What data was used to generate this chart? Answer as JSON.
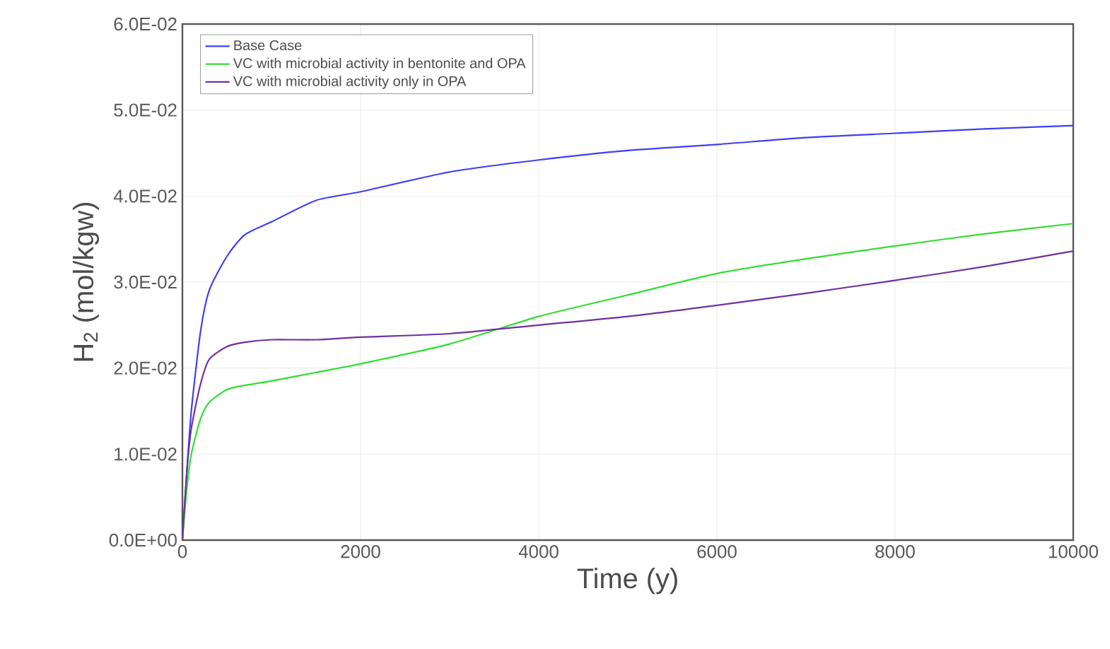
{
  "chart_data": {
    "type": "line",
    "xlabel": "Time (y)",
    "ylabel": "H$_{2}$ (mol/kgw)",
    "xlim": [
      0,
      10000
    ],
    "xticks": [
      0,
      2000,
      4000,
      6000,
      8000,
      10000
    ],
    "ylim": [
      0,
      0.06
    ],
    "yticks": [
      {
        "value": 0,
        "label": "0.0E+00"
      },
      {
        "value": 0.01,
        "label": "1.0E-02"
      },
      {
        "value": 0.02,
        "label": "2.0E-02"
      },
      {
        "value": 0.03,
        "label": "3.0E-02"
      },
      {
        "value": 0.04,
        "label": "4.0E-02"
      },
      {
        "value": 0.05,
        "label": "5.0E-02"
      },
      {
        "value": 0.06,
        "label": "6.0E-02"
      }
    ],
    "grid": true,
    "legend": "top left",
    "marker": "none",
    "line_style": "solid",
    "x": [
      0,
      50,
      100,
      200,
      300,
      500,
      700,
      1000,
      1500,
      2000,
      3000,
      4000,
      5000,
      6000,
      7000,
      8000,
      9000,
      10000
    ],
    "series": [
      {
        "name": "Base Case",
        "color": "#3f3ff5",
        "values": [
          0,
          0.008,
          0.015,
          0.024,
          0.029,
          0.033,
          0.0355,
          0.037,
          0.0395,
          0.0405,
          0.0428,
          0.0442,
          0.0453,
          0.046,
          0.0468,
          0.0473,
          0.0478,
          0.0482
        ]
      },
      {
        "name": "VC with microbial activity in bentonite and OPA",
        "color": "#33dd33",
        "values": [
          0,
          0.006,
          0.01,
          0.014,
          0.016,
          0.0175,
          0.018,
          0.0185,
          0.0195,
          0.0205,
          0.0228,
          0.026,
          0.0285,
          0.031,
          0.0327,
          0.0342,
          0.0356,
          0.0368
        ]
      },
      {
        "name": "VC with microbial activity only in OPA",
        "color": "#7030a0",
        "values": [
          0,
          0.008,
          0.013,
          0.018,
          0.021,
          0.0225,
          0.023,
          0.0233,
          0.0233,
          0.0236,
          0.024,
          0.025,
          0.026,
          0.0273,
          0.0287,
          0.0302,
          0.0318,
          0.0336
        ]
      }
    ]
  }
}
